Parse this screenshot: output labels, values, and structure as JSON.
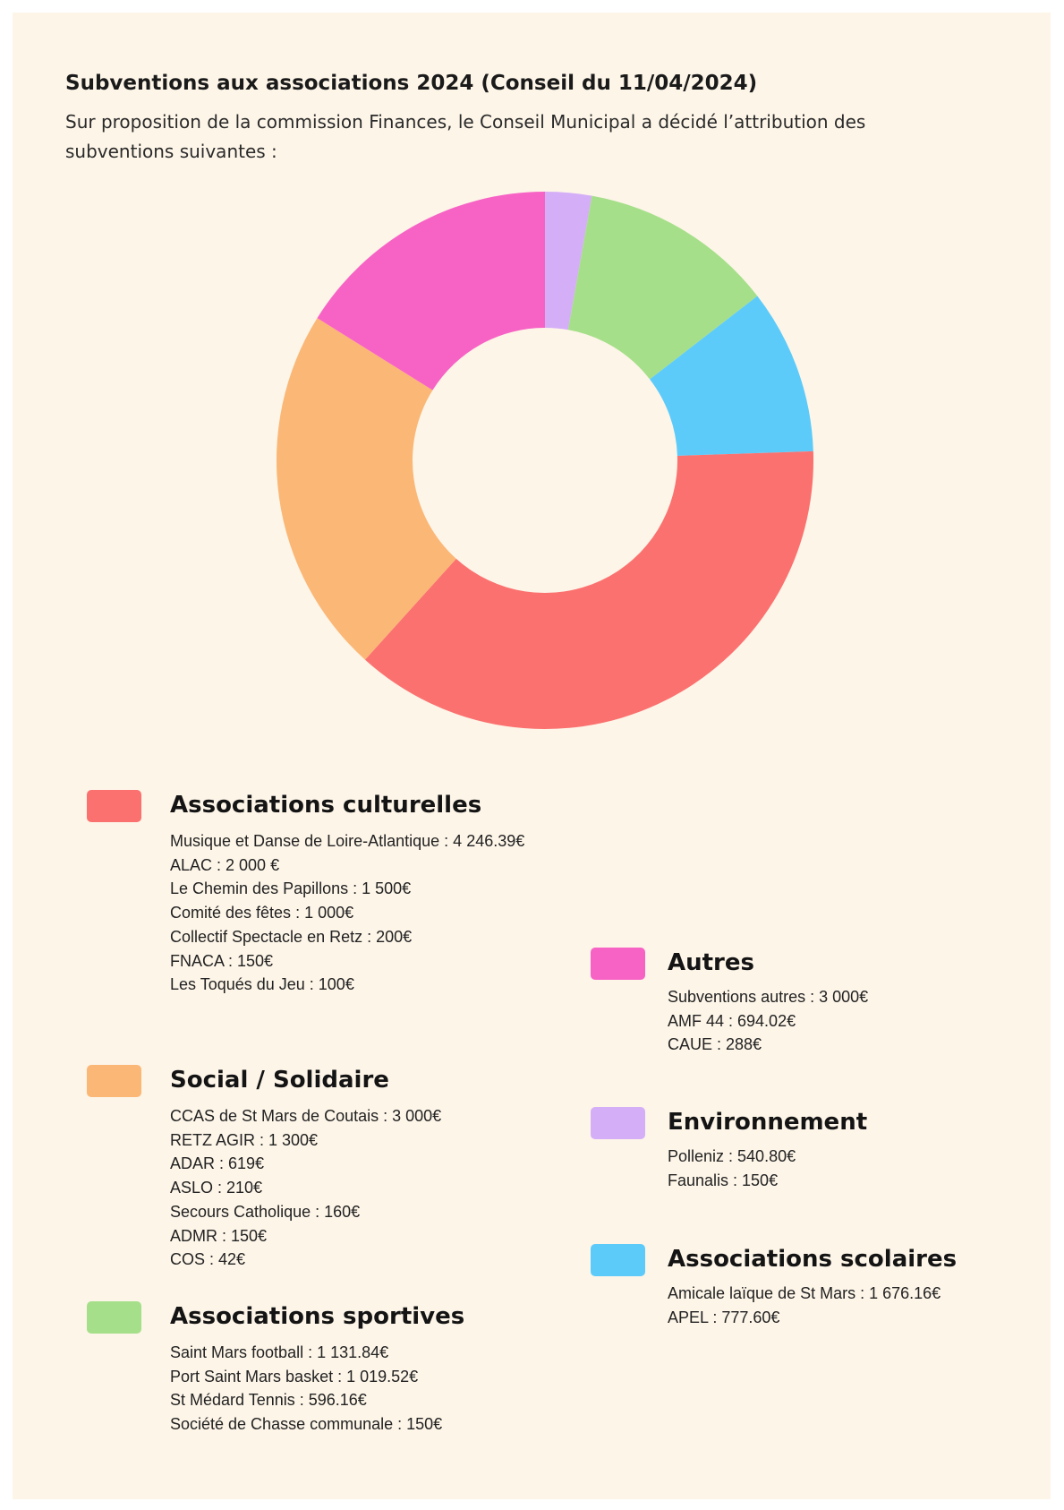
{
  "page": {
    "title": "Subventions aux associations 2024 (Conseil du 11/04/2024)",
    "intro": "Sur proposition de la commission Finances, le Conseil Municipal a décidé l’attribution des subventions suivantes :"
  },
  "chart_data": {
    "type": "pie",
    "donut": true,
    "title": "Subventions aux associations 2024 (Conseil du 11/04/2024)",
    "slices": [
      {
        "label": "Environnement",
        "value": 690.8,
        "color": "#d5aef8"
      },
      {
        "label": "Associations sportives",
        "value": 2897.52,
        "color": "#a6df8a"
      },
      {
        "label": "Associations scolaires",
        "value": 2453.76,
        "color": "#5dcbfa"
      },
      {
        "label": "Associations culturelles",
        "value": 9196.39,
        "color": "#fb716f"
      },
      {
        "label": "Social / Solidaire",
        "value": 5481,
        "color": "#fbb776"
      },
      {
        "label": "Autres",
        "value": 3982.02,
        "color": "#f763c5"
      }
    ]
  },
  "legend": {
    "culturelles": {
      "title": "Associations culturelles",
      "color": "#fb716f",
      "items": [
        "Musique et Danse de Loire-Atlantique : 4 246.39€",
        "ALAC : 2 000 €",
        "Le Chemin des Papillons : 1 500€",
        "Comité des fêtes : 1 000€",
        "Collectif Spectacle en Retz : 200€",
        "FNACA : 150€",
        "Les Toqués du Jeu : 100€"
      ]
    },
    "social": {
      "title": "Social / Solidaire",
      "color": "#fbb776",
      "items": [
        "CCAS de St Mars de Coutais : 3 000€",
        "RETZ AGIR : 1 300€",
        "ADAR : 619€",
        "ASLO : 210€",
        "Secours Catholique : 160€",
        "ADMR : 150€",
        "COS : 42€"
      ]
    },
    "sportives": {
      "title": "Associations sportives",
      "color": "#a6df8a",
      "items": [
        "Saint Mars football : 1 131.84€",
        "Port Saint Mars basket : 1 019.52€",
        "St Médard Tennis : 596.16€",
        "Société de Chasse communale : 150€"
      ]
    },
    "autres": {
      "title": "Autres",
      "color": "#f763c5",
      "items": [
        "Subventions autres : 3 000€",
        "AMF 44 : 694.02€",
        "CAUE : 288€"
      ]
    },
    "environnement": {
      "title": "Environnement",
      "color": "#d5aef8",
      "items": [
        "Polleniz : 540.80€",
        "Faunalis : 150€"
      ]
    },
    "scolaires": {
      "title": "Associations scolaires",
      "color": "#5dcbfa",
      "items": [
        "Amicale laïque de St Mars : 1 676.16€",
        "APEL : 777.60€"
      ]
    }
  }
}
